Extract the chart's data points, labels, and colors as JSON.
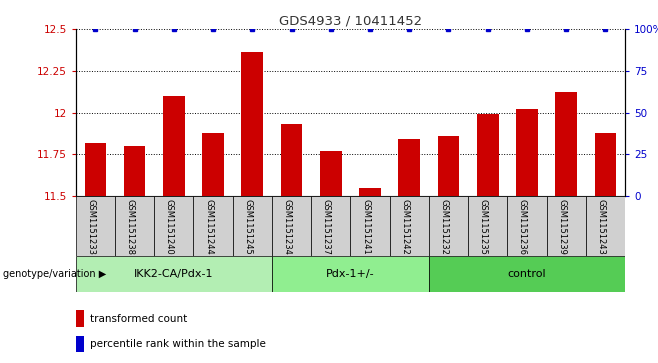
{
  "title": "GDS4933 / 10411452",
  "samples": [
    "GSM1151233",
    "GSM1151238",
    "GSM1151240",
    "GSM1151244",
    "GSM1151245",
    "GSM1151234",
    "GSM1151237",
    "GSM1151241",
    "GSM1151242",
    "GSM1151232",
    "GSM1151235",
    "GSM1151236",
    "GSM1151239",
    "GSM1151243"
  ],
  "red_values": [
    11.82,
    11.8,
    12.1,
    11.88,
    12.36,
    11.93,
    11.77,
    11.55,
    11.84,
    11.86,
    11.99,
    12.02,
    12.12,
    11.88
  ],
  "blue_values": [
    100,
    100,
    100,
    100,
    100,
    100,
    100,
    100,
    100,
    100,
    100,
    100,
    100,
    100
  ],
  "groups": [
    {
      "label": "IKK2-CA/Pdx-1",
      "start": 0,
      "end": 5,
      "color": "#b3eeb3"
    },
    {
      "label": "Pdx-1+/-",
      "start": 5,
      "end": 9,
      "color": "#90ee90"
    },
    {
      "label": "control",
      "start": 9,
      "end": 14,
      "color": "#55cc55"
    }
  ],
  "ylim_left": [
    11.5,
    12.5
  ],
  "ylim_right": [
    0,
    100
  ],
  "yticks_left": [
    11.5,
    11.75,
    12.0,
    12.25,
    12.5
  ],
  "yticks_right": [
    0,
    25,
    50,
    75,
    100
  ],
  "ytick_labels_left": [
    "11.5",
    "11.75",
    "12",
    "12.25",
    "12.5"
  ],
  "ytick_labels_right": [
    "0",
    "25",
    "50",
    "75",
    "100%"
  ],
  "ylabel_left_color": "#cc0000",
  "ylabel_right_color": "#0000cc",
  "bar_color": "#cc0000",
  "dot_color": "#0000cc",
  "grid_color": "#000000",
  "background_color": "#ffffff",
  "sample_box_color": "#d0d0d0",
  "legend_red_label": "transformed count",
  "legend_blue_label": "percentile rank within the sample",
  "genotype_label": "genotype/variation"
}
